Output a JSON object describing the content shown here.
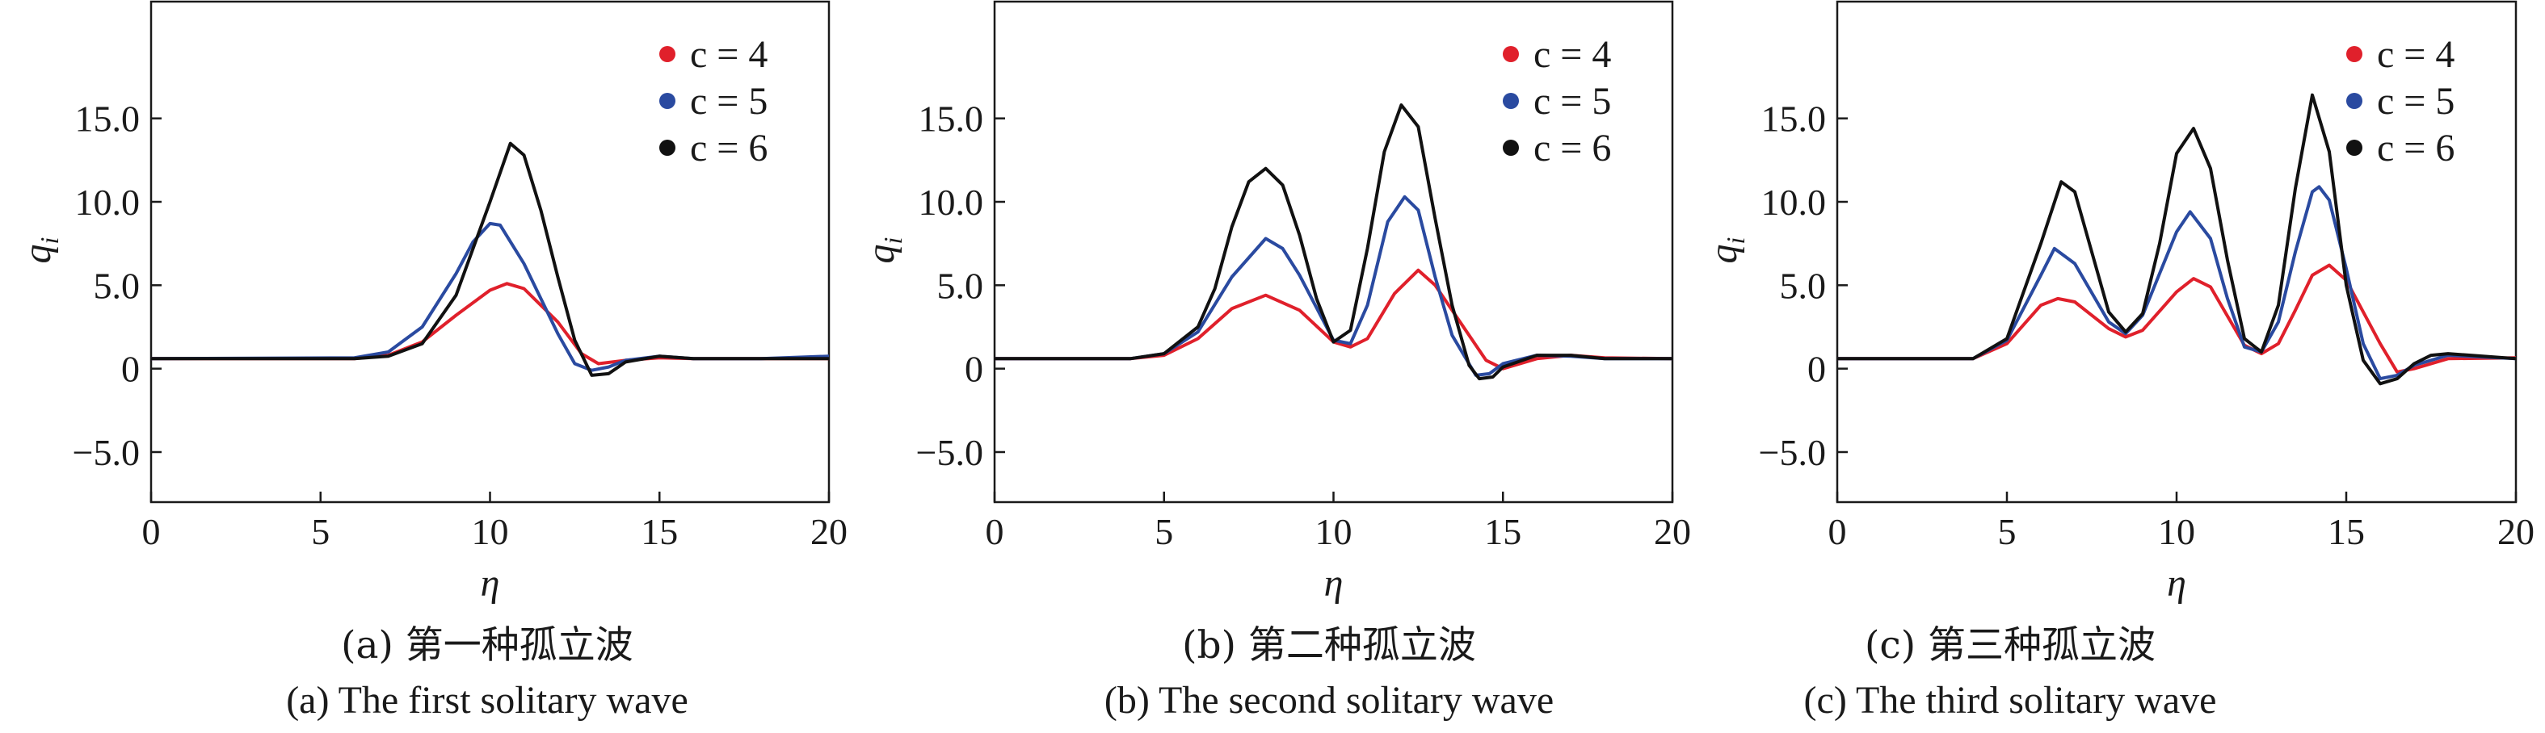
{
  "colors": {
    "c4": "#e0202b",
    "c5": "#2a4aa0",
    "c6": "#111111",
    "axis": "#1a1a1a"
  },
  "chart_data": [
    {
      "type": "line",
      "xlabel": "η",
      "ylabel": "q",
      "ylabel_sub": "i",
      "xlim": [
        0,
        20
      ],
      "ylim": [
        -8,
        22
      ],
      "xticks": [
        0,
        5,
        10,
        15,
        20
      ],
      "xtick_labels": [
        "0",
        "5",
        "10",
        "15",
        "20"
      ],
      "yticks": [
        -5,
        0,
        5,
        10,
        15
      ],
      "ytick_labels": [
        "−5.0",
        "0",
        "5.0",
        "10.0",
        "15.0"
      ],
      "legend_position": "top-right",
      "caption_zh": "(a) 第一种孤立波",
      "caption_en": "(a) The first solitary wave",
      "series": [
        {
          "name": "c = 4",
          "color": "#e0202b",
          "x": [
            0,
            6,
            7,
            8,
            9,
            10,
            10.5,
            11,
            12,
            12.7,
            13.2,
            14,
            15,
            16,
            18,
            20
          ],
          "y": [
            0.6,
            0.6,
            0.8,
            1.6,
            3.2,
            4.7,
            5.1,
            4.8,
            2.8,
            0.9,
            0.3,
            0.5,
            0.65,
            0.6,
            0.6,
            0.6
          ]
        },
        {
          "name": "c = 5",
          "color": "#2a4aa0",
          "x": [
            0,
            6,
            7,
            8,
            9,
            9.5,
            10,
            10.3,
            11,
            12,
            12.5,
            13,
            13.5,
            14,
            15,
            16,
            18,
            20
          ],
          "y": [
            0.6,
            0.65,
            1.0,
            2.5,
            5.7,
            7.6,
            8.7,
            8.6,
            6.3,
            2.1,
            0.3,
            -0.1,
            0.1,
            0.5,
            0.75,
            0.6,
            0.6,
            0.75
          ]
        },
        {
          "name": "c = 6",
          "color": "#111111",
          "x": [
            0,
            6,
            7,
            8,
            9,
            10,
            10.6,
            11,
            11.5,
            12,
            12.5,
            13,
            13.5,
            14,
            15,
            16,
            18,
            20
          ],
          "y": [
            0.6,
            0.6,
            0.75,
            1.5,
            4.4,
            10.0,
            13.5,
            12.8,
            9.5,
            5.5,
            1.7,
            -0.4,
            -0.3,
            0.4,
            0.75,
            0.6,
            0.6,
            0.6
          ]
        }
      ]
    },
    {
      "type": "line",
      "xlabel": "η",
      "ylabel": "q",
      "ylabel_sub": "i",
      "xlim": [
        0,
        20
      ],
      "ylim": [
        -8,
        22
      ],
      "xticks": [
        0,
        5,
        10,
        15,
        20
      ],
      "xtick_labels": [
        "0",
        "5",
        "10",
        "15",
        "20"
      ],
      "yticks": [
        -5,
        0,
        5,
        10,
        15
      ],
      "ytick_labels": [
        "−5.0",
        "0",
        "5.0",
        "10.0",
        "15.0"
      ],
      "legend_position": "top-right",
      "caption_zh": "(b) 第二种孤立波",
      "caption_en": "(b) The second solitary wave",
      "series": [
        {
          "name": "c = 4",
          "color": "#e0202b",
          "x": [
            0,
            4,
            5,
            6,
            7,
            8,
            9,
            10,
            10.5,
            11,
            11.8,
            12.5,
            13,
            13.8,
            14.5,
            15,
            16,
            17,
            18,
            20
          ],
          "y": [
            0.6,
            0.6,
            0.8,
            1.8,
            3.6,
            4.4,
            3.5,
            1.6,
            1.3,
            1.8,
            4.5,
            5.9,
            5.0,
            2.6,
            0.5,
            0.0,
            0.6,
            0.8,
            0.65,
            0.6
          ]
        },
        {
          "name": "c = 5",
          "color": "#2a4aa0",
          "x": [
            0,
            4,
            5,
            6,
            7,
            8,
            8.5,
            9,
            10,
            10.5,
            11,
            11.6,
            12.1,
            12.5,
            13,
            13.5,
            14.2,
            14.6,
            15,
            16,
            17,
            18,
            20
          ],
          "y": [
            0.6,
            0.6,
            0.9,
            2.2,
            5.5,
            7.8,
            7.2,
            5.6,
            1.7,
            1.5,
            3.8,
            8.8,
            10.3,
            9.5,
            5.5,
            2.0,
            -0.4,
            -0.3,
            0.3,
            0.8,
            0.75,
            0.6,
            0.6
          ]
        },
        {
          "name": "c = 6",
          "color": "#111111",
          "x": [
            0,
            4,
            5,
            6,
            6.5,
            7,
            7.5,
            8,
            8.5,
            9,
            9.5,
            10,
            10.5,
            11,
            11.5,
            12,
            12.5,
            13,
            13.5,
            14,
            14.3,
            14.7,
            15,
            16,
            17,
            18,
            20
          ],
          "y": [
            0.6,
            0.6,
            0.9,
            2.5,
            4.8,
            8.5,
            11.2,
            12.0,
            11.0,
            8.0,
            4.2,
            1.6,
            2.3,
            7.2,
            13.0,
            15.8,
            14.5,
            9.0,
            3.8,
            0.2,
            -0.6,
            -0.5,
            0.1,
            0.8,
            0.8,
            0.6,
            0.6
          ]
        }
      ]
    },
    {
      "type": "line",
      "xlabel": "η",
      "ylabel": "q",
      "ylabel_sub": "i",
      "xlim": [
        0,
        20
      ],
      "ylim": [
        -8,
        22
      ],
      "xticks": [
        0,
        5,
        10,
        15,
        20
      ],
      "xtick_labels": [
        "0",
        "5",
        "10",
        "15",
        "20"
      ],
      "yticks": [
        -5,
        0,
        5,
        10,
        15
      ],
      "ytick_labels": [
        "−5.0",
        "0",
        "5.0",
        "10.0",
        "15.0"
      ],
      "legend_position": "top-right",
      "caption_zh": "(c) 第三种孤立波",
      "caption_en": "(c) The third solitary wave",
      "series": [
        {
          "name": "c = 4",
          "color": "#e0202b",
          "x": [
            0,
            4,
            5,
            6,
            6.5,
            7,
            8,
            8.5,
            9,
            10,
            10.5,
            11,
            12,
            12.5,
            13,
            13.5,
            14,
            14.5,
            15,
            16,
            16.5,
            17,
            18,
            20
          ],
          "y": [
            0.6,
            0.6,
            1.5,
            3.8,
            4.2,
            4.0,
            2.4,
            1.9,
            2.3,
            4.6,
            5.4,
            4.9,
            1.4,
            0.9,
            1.5,
            3.5,
            5.6,
            6.2,
            5.3,
            1.5,
            -0.2,
            0.0,
            0.6,
            0.65
          ]
        },
        {
          "name": "c = 5",
          "color": "#2a4aa0",
          "x": [
            0,
            4,
            5,
            6,
            6.4,
            7,
            8,
            8.5,
            9,
            10,
            10.4,
            11,
            11.5,
            12,
            12.5,
            13,
            13.5,
            14,
            14.2,
            14.5,
            15,
            15.5,
            16,
            16.5,
            17,
            18,
            20
          ],
          "y": [
            0.6,
            0.6,
            1.7,
            5.6,
            7.2,
            6.3,
            2.8,
            2.1,
            3.2,
            8.2,
            9.4,
            7.8,
            4.2,
            1.3,
            1.0,
            2.8,
            7.0,
            10.6,
            10.9,
            10.1,
            6.0,
            1.5,
            -0.6,
            -0.4,
            0.2,
            0.8,
            0.6
          ]
        },
        {
          "name": "c = 6",
          "color": "#111111",
          "x": [
            0,
            4,
            5,
            6,
            6.6,
            7,
            7.5,
            8,
            8.5,
            9,
            9.5,
            10,
            10.5,
            11,
            11.5,
            12,
            12.5,
            13,
            13.5,
            14,
            14.5,
            15,
            15.5,
            16,
            16.5,
            17,
            17.5,
            18,
            20
          ],
          "y": [
            0.6,
            0.6,
            1.8,
            7.5,
            11.2,
            10.6,
            7.0,
            3.4,
            2.2,
            3.3,
            7.5,
            12.9,
            14.4,
            12.0,
            6.5,
            1.8,
            1.0,
            3.8,
            10.8,
            16.4,
            13.0,
            5.0,
            0.5,
            -0.9,
            -0.6,
            0.3,
            0.8,
            0.9,
            0.6
          ]
        }
      ]
    }
  ]
}
